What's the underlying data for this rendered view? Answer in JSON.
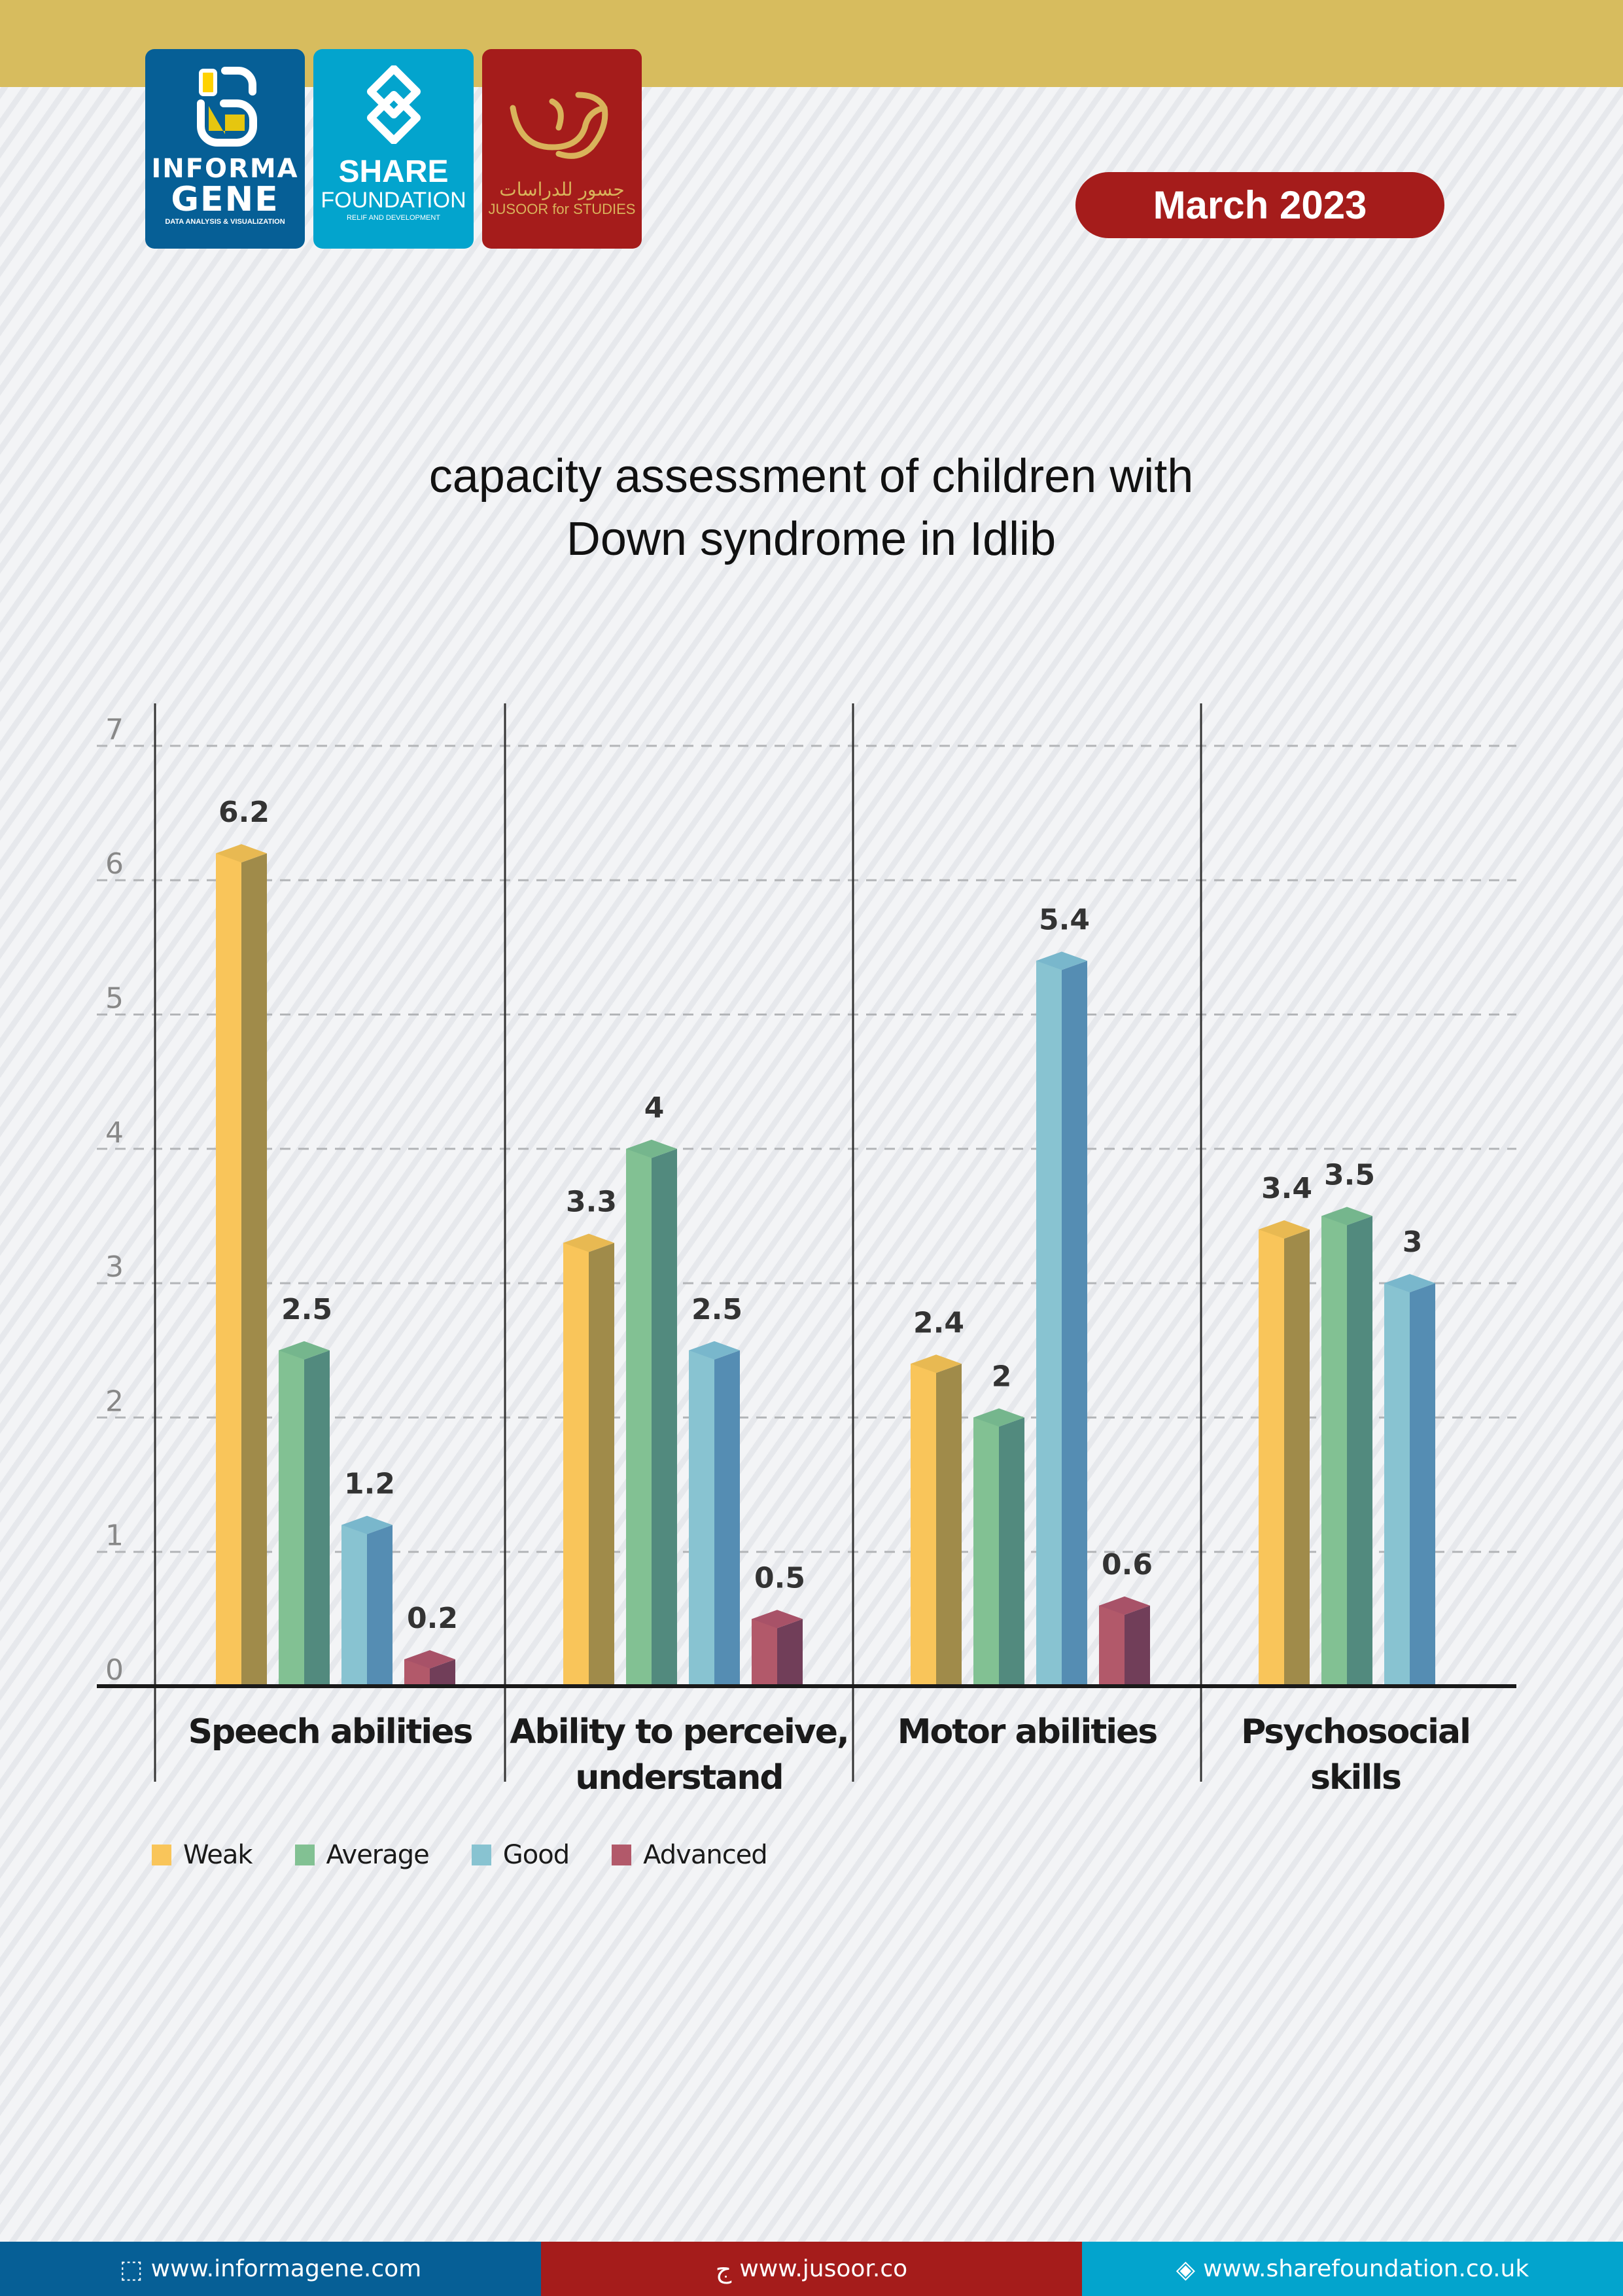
{
  "header": {
    "logos": [
      {
        "name": "INFORMA",
        "name2": "GENE",
        "tagline": "DATA ANALYSIS & VISUALIZATION",
        "color": "#065f96"
      },
      {
        "name": "SHARE",
        "name2": "FOUNDATION",
        "tagline": "RELIF AND DEVELOPMENT",
        "color": "#03a4cd"
      },
      {
        "name_ar": "جسور للدراسات",
        "name": "JUSOOR for STUDIES",
        "color": "#a51c1b"
      }
    ],
    "date": "March 2023"
  },
  "chart_data": {
    "type": "bar",
    "title": "capacity assessment of children with Down syndrome in Idlib",
    "title_lines": [
      "capacity assessment of children with",
      "Down syndrome in Idlib"
    ],
    "categories": [
      "Speech abilities",
      "Ability to perceive, understand",
      "Motor abilities",
      "Psychosocial skills"
    ],
    "category_lines": [
      [
        "Speech abilities"
      ],
      [
        "Ability to perceive,",
        "understand"
      ],
      [
        "Motor abilities"
      ],
      [
        "Psychosocial",
        "skills"
      ]
    ],
    "series": [
      {
        "name": "Weak",
        "values": [
          6.2,
          3.3,
          2.4,
          3.4
        ],
        "color": "#f9c55a",
        "side": "#a08b4a",
        "top": "#e8b952"
      },
      {
        "name": "Average",
        "values": [
          2.5,
          4,
          2,
          3.5
        ],
        "color": "#82c193",
        "side": "#528a7e",
        "top": "#75b68d"
      },
      {
        "name": "Good",
        "values": [
          1.2,
          2.5,
          5.4,
          3
        ],
        "color": "#88c3d1",
        "side": "#558db3",
        "top": "#79b7cc"
      },
      {
        "name": "Advanced",
        "values": [
          0.2,
          0.5,
          0.6,
          null
        ],
        "color": "#b2596a",
        "side": "#713e59",
        "top": "#a85268"
      }
    ],
    "data_labels": [
      [
        "6.2",
        "3.3",
        "2.4",
        "3.4"
      ],
      [
        "2.5",
        "4",
        "2",
        "3.5"
      ],
      [
        "1.2",
        "2.5",
        "5.4",
        "3"
      ],
      [
        "0.2",
        "0.5",
        "0.6",
        ""
      ]
    ],
    "xlabel": "",
    "ylabel": "",
    "yticks": [
      0,
      1,
      2,
      3,
      4,
      5,
      6,
      7
    ],
    "ylim": [
      0,
      7
    ],
    "grid": true,
    "legend_position": "bottom-left"
  },
  "footer": [
    {
      "icon": "informagene-icon",
      "text": "www.informagene.com",
      "color": "#065f96"
    },
    {
      "icon": "jusoor-icon",
      "text": "www.jusoor.co",
      "color": "#a51c1b"
    },
    {
      "icon": "share-icon",
      "text": "www.sharefoundation.co.uk",
      "color": "#03a4cd"
    }
  ]
}
